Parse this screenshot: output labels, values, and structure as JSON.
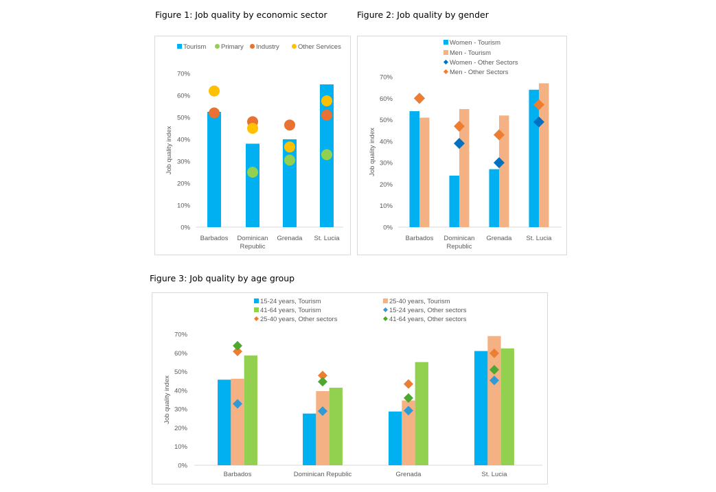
{
  "figures": [
    {
      "title": "Figure 1: Job quality by economic sector"
    },
    {
      "title": "Figure 2: Job quality by gender"
    },
    {
      "title": "Figure 3: Job quality by age group"
    }
  ],
  "colors": {
    "tourism_blue": "#00B0F0",
    "primary_green": "#92D050",
    "industry_orange": "#E97132",
    "other_services_yellow": "#FFC000",
    "men_salmon": "#F4B183",
    "women_diamond_blue": "#0070C0",
    "men_diamond_orange": "#ED7D31",
    "age_green_bar": "#92D050",
    "age1524_diamond": "#2E9BD6",
    "age2540_diamond": "#ED7D31",
    "age4164_diamond": "#4EA72E",
    "axis": "#d9d9d9"
  },
  "chart_data": [
    {
      "type": "bar",
      "title": "Figure 1: Job quality by economic sector",
      "xlabel": "",
      "ylabel": "Job quality index",
      "ylim": [
        0,
        0.7
      ],
      "yticks": [
        "0%",
        "10%",
        "20%",
        "30%",
        "40%",
        "50%",
        "60%",
        "70%"
      ],
      "categories": [
        "Barbados",
        "Dominican Republic",
        "Grenada",
        "St. Lucia"
      ],
      "category_lines": [
        [
          "Barbados"
        ],
        [
          "Dominican",
          "Republic"
        ],
        [
          "Grenada"
        ],
        [
          "St. Lucia"
        ]
      ],
      "legend_position": "top",
      "grid": false,
      "series": [
        {
          "name": "Tourism",
          "kind": "bar",
          "values": [
            0.525,
            0.38,
            0.4,
            0.65
          ]
        },
        {
          "name": "Primary",
          "kind": "circle",
          "values": [
            null,
            0.25,
            0.305,
            0.33
          ]
        },
        {
          "name": "Industry",
          "kind": "circle",
          "values": [
            0.52,
            0.48,
            0.465,
            0.51
          ]
        },
        {
          "name": "Other Services",
          "kind": "circle",
          "values": [
            0.62,
            0.45,
            0.365,
            0.575
          ]
        }
      ]
    },
    {
      "type": "bar",
      "title": "Figure 2: Job quality by gender",
      "xlabel": "",
      "ylabel": "Job quality index",
      "ylim": [
        0,
        0.7
      ],
      "yticks": [
        "0%",
        "10%",
        "20%",
        "30%",
        "40%",
        "50%",
        "60%",
        "70%"
      ],
      "categories": [
        "Barbados",
        "Dominican Republic",
        "Grenada",
        "St. Lucia"
      ],
      "category_lines": [
        [
          "Barbados"
        ],
        [
          "Dominican",
          "Republic"
        ],
        [
          "Grenada"
        ],
        [
          "St. Lucia"
        ]
      ],
      "legend_position": "top",
      "grid": false,
      "series": [
        {
          "name": "Women - Tourism",
          "kind": "bar",
          "values": [
            0.54,
            0.24,
            0.27,
            0.64
          ]
        },
        {
          "name": "Men - Tourism",
          "kind": "bar",
          "values": [
            0.51,
            0.55,
            0.52,
            0.67
          ]
        },
        {
          "name": "Women - Other Sectors",
          "kind": "diamond",
          "values": [
            0.6,
            0.39,
            0.3,
            0.49
          ]
        },
        {
          "name": "Men - Other Sectors",
          "kind": "diamond",
          "values": [
            0.6,
            0.47,
            0.43,
            0.57
          ]
        }
      ]
    },
    {
      "type": "bar",
      "title": "Figure 3: Job quality by age group",
      "xlabel": "",
      "ylabel": "Job quality index",
      "ylim": [
        0,
        0.7
      ],
      "yticks": [
        "0%",
        "10%",
        "20%",
        "30%",
        "40%",
        "50%",
        "60%",
        "70%"
      ],
      "categories": [
        "Barbados",
        "Dominican Republic",
        "Grenada",
        "St. Lucia"
      ],
      "category_lines": [
        [
          "Barbados"
        ],
        [
          "Dominican Republic"
        ],
        [
          "Grenada"
        ],
        [
          "St. Lucia"
        ]
      ],
      "legend_position": "top",
      "grid": false,
      "series": [
        {
          "name": "15-24 years, Tourism",
          "kind": "bar",
          "values": [
            0.457,
            0.276,
            0.287,
            0.61
          ]
        },
        {
          "name": "25-40 years, Tourism",
          "kind": "bar",
          "values": [
            0.462,
            0.396,
            0.346,
            0.69
          ]
        },
        {
          "name": "41-64 years, Tourism",
          "kind": "bar",
          "values": [
            0.586,
            0.414,
            0.551,
            0.624
          ]
        },
        {
          "name": "15-24 years, Other sectors",
          "kind": "diamond",
          "values": [
            0.328,
            0.289,
            0.292,
            0.453
          ]
        },
        {
          "name": "25-40 years, Other sectors",
          "kind": "diamond",
          "values": [
            0.608,
            0.479,
            0.434,
            0.598
          ]
        },
        {
          "name": "41-64 years, Other sectors",
          "kind": "diamond",
          "values": [
            0.638,
            0.446,
            0.359,
            0.51
          ]
        }
      ]
    }
  ]
}
